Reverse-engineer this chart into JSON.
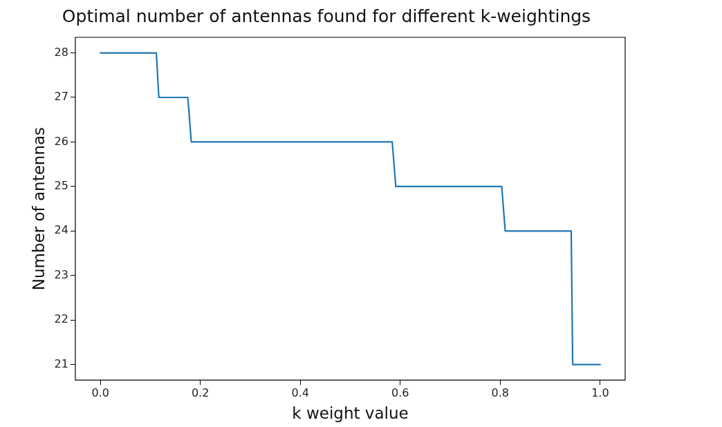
{
  "chart_data": {
    "type": "line",
    "title": "Optimal number of antennas found for different k-weightings",
    "xlabel": "k weight value",
    "ylabel": "Number of antennas",
    "series": [
      {
        "color": "#1f77b4",
        "x": [
          0,
          0.112,
          0.117,
          0.175,
          0.182,
          0.584,
          0.591,
          0.803,
          0.81,
          0.942,
          0.945,
          1.0
        ],
        "values": [
          28,
          28,
          27,
          27,
          26,
          26,
          25,
          25,
          24,
          24,
          21,
          21
        ]
      }
    ],
    "xlim": [
      -0.05,
      1.05
    ],
    "xticks": [
      {
        "value": 0,
        "label": "0.0"
      },
      {
        "value": 0.2,
        "label": "0.2"
      },
      {
        "value": 0.4,
        "label": "0.4"
      },
      {
        "value": 0.6,
        "label": "0.6"
      },
      {
        "value": 0.8,
        "label": "0.8"
      },
      {
        "value": 1,
        "label": "1.0"
      }
    ],
    "ylim": [
      20.65,
      28.35
    ],
    "yticks": [
      21,
      22,
      23,
      24,
      25,
      26,
      27,
      28
    ],
    "grid": false,
    "legend": false,
    "marker": "none",
    "line_style": "solid"
  }
}
